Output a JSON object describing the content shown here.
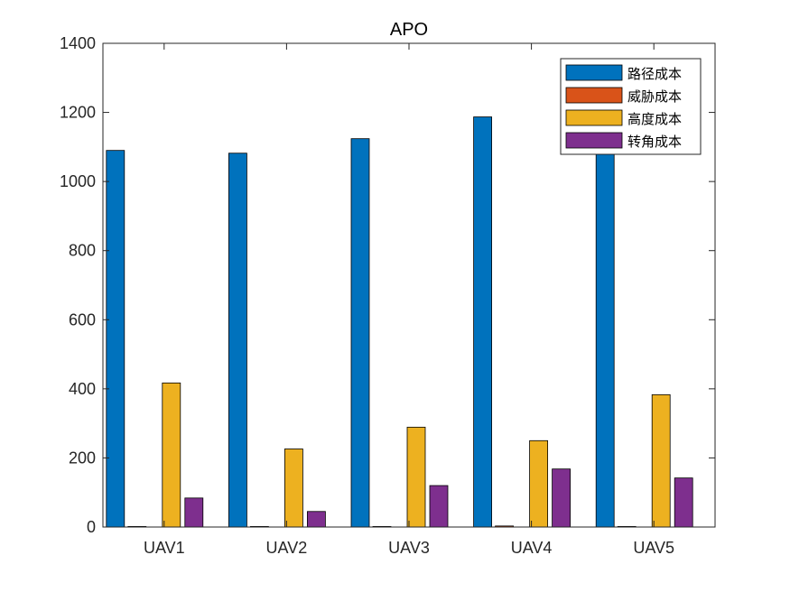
{
  "chart_data": {
    "type": "bar",
    "title": "APO",
    "xlabel": "",
    "ylabel": "",
    "categories": [
      "UAV1",
      "UAV2",
      "UAV3",
      "UAV4",
      "UAV5"
    ],
    "ylim": [
      0,
      1400
    ],
    "yticks": [
      0,
      200,
      400,
      600,
      800,
      1000,
      1200,
      1400
    ],
    "grid": false,
    "legend_position": "top-right",
    "series": [
      {
        "name": "路径成本",
        "color": "#0072BD",
        "values": [
          1090,
          1082,
          1124,
          1187,
          1110
        ]
      },
      {
        "name": "威胁成本",
        "color": "#D95319",
        "values": [
          0,
          0,
          0,
          3,
          0
        ]
      },
      {
        "name": "高度成本",
        "color": "#EDB120",
        "values": [
          417,
          226,
          289,
          250,
          383
        ]
      },
      {
        "name": "转角成本",
        "color": "#7E2F8E",
        "values": [
          84,
          45,
          120,
          168,
          142
        ]
      }
    ]
  }
}
